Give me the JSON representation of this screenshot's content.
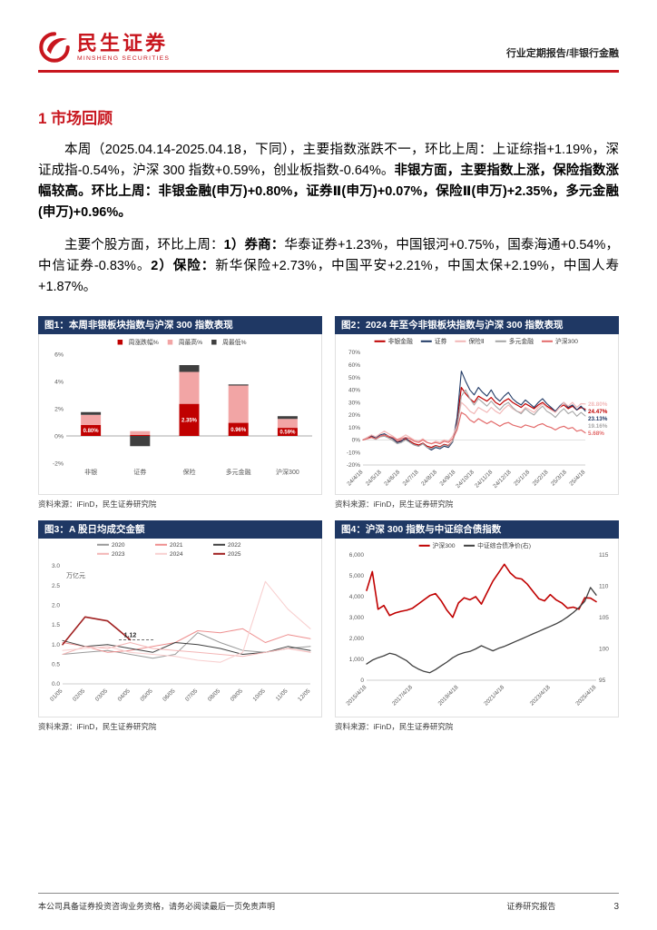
{
  "header": {
    "logo_cn": "民生证券",
    "logo_en": "MINSHENG SECURITIES",
    "report_type": "行业定期报告/非银行金融"
  },
  "section": {
    "title": "1 市场回顾"
  },
  "paragraphs": [
    {
      "spans": [
        {
          "text": "本周（2025.04.14-2025.04.18，下同），主要指数涨跌不一，环比上周：上证综指+1.19%，深证成指-0.54%，沪深 300 指数+0.59%，创业板指数-0.64%。",
          "bold": false
        },
        {
          "text": "非银方面，主要指数上涨，保险指数涨幅较高。环比上周：非银金融(申万)+0.80%，证券Ⅱ(申万)+0.07%，保险Ⅱ(申万)+2.35%，多元金融(申万)+0.96%。",
          "bold": true
        }
      ]
    },
    {
      "spans": [
        {
          "text": "主要个股方面，环比上周：",
          "bold": false
        },
        {
          "text": "1）券商：",
          "bold": true
        },
        {
          "text": "华泰证券+1.23%，中国银河+0.75%，国泰海通+0.54%，中信证券-0.83%。",
          "bold": false
        },
        {
          "text": "2）保险：",
          "bold": true
        },
        {
          "text": "新华保险+2.73%，中国平安+2.21%，中国太保+2.19%，中国人寿+1.87%。",
          "bold": false
        }
      ]
    }
  ],
  "figures": [
    {
      "title": "图1：本周非银板块指数与沪深 300 指数表现",
      "source": "资料来源：iFinD，民生证券研究院"
    },
    {
      "title": "图2：2024 年至今非银板块指数与沪深 300 指数表现",
      "source": "资料来源：iFinD，民生证券研究院"
    },
    {
      "title": "图3：A 股日均成交金额",
      "source": "资料来源：iFinD，民生证券研究院"
    },
    {
      "title": "图4：沪深 300 指数与中证综合债指数",
      "source": "资料来源：iFinD，民生证券研究院"
    }
  ],
  "chart_data": [
    {
      "type": "bar",
      "title": "本周非银板块指数与沪深300指数表现",
      "categories": [
        "非银",
        "证券",
        "保险",
        "多元金融",
        "沪深300"
      ],
      "series": [
        {
          "name": "周涨跌幅%",
          "color": "#c00000",
          "values": [
            0.8,
            0.07,
            2.35,
            0.96,
            0.59
          ]
        },
        {
          "name": "周最高%",
          "color": "#f2a5a5",
          "values": [
            1.55,
            0.35,
            4.7,
            3.7,
            1.25
          ]
        },
        {
          "name": "周最低%",
          "color": "#3f3f3f",
          "values": [
            1.75,
            -0.75,
            5.2,
            3.78,
            1.45
          ]
        }
      ],
      "bar_labels": [
        "0.80%",
        "",
        "2.35%",
        "0.96%",
        "0.59%"
      ],
      "ylim": [
        -2,
        6
      ],
      "yticks": [
        "6%",
        "4%",
        "2%",
        "0%",
        "-2%"
      ],
      "legend_position": "top",
      "grid": false
    },
    {
      "type": "line",
      "title": "2024年至今非银板块指数与沪深300指数表现",
      "x_labels": [
        "24/4/18",
        "24/5/18",
        "24/6/18",
        "24/7/18",
        "24/8/18",
        "24/9/18",
        "24/10/18",
        "24/11/18",
        "24/12/18",
        "25/1/18",
        "25/2/18",
        "25/3/18",
        "25/4/18"
      ],
      "ylim": [
        -20,
        70
      ],
      "yticks": [
        "70%",
        "60%",
        "50%",
        "40%",
        "30%",
        "20%",
        "10%",
        "0%",
        "-10%",
        "-20%"
      ],
      "legend_position": "top",
      "grid": false,
      "series": [
        {
          "name": "非银金融",
          "color": "#c00000",
          "end_label": "24.47%",
          "values": [
            0,
            1.5,
            2.5,
            1,
            3,
            4,
            2.5,
            1,
            -1.5,
            -0.5,
            1,
            -1,
            -3,
            -4,
            -2.5,
            -5,
            -6,
            -4.5,
            -5.5,
            -3.5,
            -4.5,
            -1,
            15,
            42,
            37,
            33,
            30,
            35,
            33,
            31,
            34,
            30,
            28,
            31,
            33,
            30,
            28,
            26,
            29,
            27,
            25,
            28,
            30,
            27,
            25,
            23,
            26,
            28,
            25,
            27,
            24,
            26,
            24.47
          ]
        },
        {
          "name": "证券",
          "color": "#1f3864",
          "end_label": "23.13%",
          "values": [
            0,
            2,
            3.5,
            1.5,
            4,
            5,
            3,
            1,
            -2,
            -1,
            2,
            -2,
            -4,
            -5,
            -3,
            -6,
            -8,
            -6,
            -7,
            -5,
            -6,
            -1.5,
            18,
            55,
            47,
            40,
            36,
            42,
            38,
            35,
            40,
            34,
            31,
            35,
            38,
            33,
            30,
            28,
            32,
            29,
            26,
            30,
            33,
            29,
            26,
            23,
            27,
            30,
            26,
            28,
            24,
            27,
            23.13
          ]
        },
        {
          "name": "保险Ⅱ",
          "color": "#f2b8b8",
          "end_label": "28.80%",
          "values": [
            0,
            2,
            4,
            2.5,
            5,
            7,
            5,
            3,
            0.5,
            2,
            4,
            2,
            0,
            -1,
            1,
            -2,
            -3,
            -1,
            -2,
            0,
            -1,
            3,
            12,
            30,
            27,
            23,
            21,
            26,
            24,
            22,
            26,
            23,
            21,
            25,
            28,
            25,
            23,
            22,
            26,
            24,
            22,
            26,
            29,
            26,
            24,
            22,
            26,
            30,
            27,
            30,
            26,
            29,
            28.8
          ]
        },
        {
          "name": "多元金融",
          "color": "#a6a6a6",
          "end_label": "19.16%",
          "values": [
            0,
            1,
            2,
            0.5,
            2.5,
            3,
            1.5,
            -0.5,
            -3,
            -2,
            0,
            -2,
            -4,
            -5,
            -3,
            -6,
            -7,
            -5,
            -6,
            -4,
            -5,
            -1,
            10,
            35,
            40,
            33,
            28,
            33,
            30,
            27,
            31,
            27,
            24,
            28,
            30,
            26,
            23,
            21,
            25,
            22,
            20,
            24,
            27,
            23,
            21,
            18,
            22,
            25,
            21,
            23,
            19,
            22,
            19.16
          ]
        },
        {
          "name": "沪深300",
          "color": "#e36c6c",
          "end_label": "5.68%",
          "values": [
            0,
            1,
            2,
            1,
            3,
            4,
            3,
            2,
            0,
            1,
            2,
            1,
            -1,
            -2,
            0,
            -2,
            -3,
            -2,
            -3,
            -1,
            -2,
            1,
            8,
            22,
            20,
            16,
            14,
            17,
            15,
            13,
            15,
            13,
            11,
            13,
            14,
            12,
            11,
            10,
            12,
            11,
            10,
            12,
            13,
            11,
            10,
            8,
            10,
            11,
            9,
            10,
            7,
            8,
            5.68
          ]
        }
      ]
    },
    {
      "type": "line",
      "title": "A股日均成交金额",
      "unit_label": "万亿元",
      "x_labels": [
        "01/05",
        "02/05",
        "03/05",
        "04/05",
        "05/05",
        "06/05",
        "07/05",
        "08/05",
        "09/05",
        "10/05",
        "11/05",
        "12/05"
      ],
      "ylim": [
        0,
        3
      ],
      "yticks": [
        "3.0",
        "2.5",
        "2.0",
        "1.5",
        "1.0",
        "0.5",
        "0.0"
      ],
      "legend_position": "top",
      "grid": false,
      "annotation": {
        "text": "1.12",
        "value": 1.12,
        "x_from": 2.5,
        "x_to": 4.1,
        "text_x": 3.0
      },
      "series": [
        {
          "name": "2020",
          "color": "#9a9a9a",
          "values": [
            0.75,
            0.8,
            0.85,
            0.75,
            0.65,
            0.75,
            1.3,
            1.05,
            0.85,
            0.8,
            0.9,
            0.95
          ]
        },
        {
          "name": "2021",
          "color": "#ee8f8f",
          "values": [
            1.05,
            0.95,
            0.8,
            0.85,
            0.95,
            1.05,
            1.35,
            1.3,
            1.4,
            1.05,
            1.25,
            1.15
          ]
        },
        {
          "name": "2022",
          "color": "#404040",
          "values": [
            1.1,
            0.95,
            1.0,
            0.9,
            0.8,
            1.05,
            1.0,
            0.9,
            0.75,
            0.8,
            0.95,
            0.85
          ]
        },
        {
          "name": "2023",
          "color": "#f3b6b6",
          "values": [
            0.75,
            0.95,
            0.9,
            1.05,
            0.9,
            0.85,
            0.8,
            0.75,
            0.7,
            0.8,
            0.9,
            0.8
          ]
        },
        {
          "name": "2024",
          "color": "#f8d0d0",
          "values": [
            0.85,
            0.9,
            0.95,
            0.8,
            0.75,
            0.7,
            0.6,
            0.55,
            0.8,
            2.6,
            1.9,
            1.4
          ]
        },
        {
          "name": "2025",
          "color": "#a02020",
          "values": [
            1.0,
            1.7,
            1.6,
            1.12
          ]
        }
      ]
    },
    {
      "type": "line",
      "title": "沪深300指数与中证综合债指数",
      "x_labels": [
        "2015/4/18",
        "2017/4/18",
        "2019/4/18",
        "2021/4/18",
        "2023/4/18",
        "2025/4/18"
      ],
      "ylim_left": [
        0,
        6000
      ],
      "yticks_left": [
        "6,000",
        "5,000",
        "4,000",
        "3,000",
        "2,000",
        "1,000",
        "0"
      ],
      "ylim_right": [
        95,
        115
      ],
      "yticks_right": [
        "115",
        "110",
        "105",
        "100",
        "95"
      ],
      "legend_position": "top",
      "grid": false,
      "series": [
        {
          "name": "沪深300",
          "color": "#c00000",
          "axis": "left",
          "values": [
            4300,
            5200,
            3400,
            3580,
            3100,
            3220,
            3300,
            3350,
            3450,
            3650,
            3850,
            4050,
            4150,
            3800,
            3350,
            3010,
            3700,
            3950,
            3850,
            4000,
            3650,
            4200,
            4750,
            5150,
            5550,
            5150,
            4900,
            4850,
            4600,
            4250,
            3900,
            3800,
            4100,
            3850,
            3700,
            3450,
            3500,
            3400,
            3950,
            3930,
            3760
          ]
        },
        {
          "name": "中证综合债净价(右)",
          "color": "#404040",
          "axis": "right",
          "values": [
            97.6,
            98.2,
            98.6,
            98.9,
            99.3,
            99.1,
            98.6,
            98.1,
            97.3,
            96.8,
            96.4,
            96.2,
            96.7,
            97.3,
            97.9,
            98.6,
            99.1,
            99.4,
            99.6,
            100.0,
            100.5,
            100.1,
            99.7,
            100.1,
            100.4,
            100.8,
            101.2,
            101.6,
            102.0,
            102.4,
            102.8,
            103.2,
            103.6,
            104.0,
            104.5,
            105.1,
            105.8,
            106.6,
            107.6,
            109.8,
            108.6
          ]
        }
      ]
    }
  ],
  "footer": {
    "left": "本公司具备证券投资咨询业务资格，请务必阅读最后一页免责声明",
    "right": "证券研究报告",
    "page": "3"
  },
  "colors": {
    "brand_red": "#c8161e",
    "chart_red": "#c00000",
    "figure_title_bg": "#1f3864",
    "figure_title_text": "#ffffff"
  },
  "icons": [
    {
      "name": "logo-mark-icon",
      "shape": "red open circle with swoosh"
    }
  ]
}
